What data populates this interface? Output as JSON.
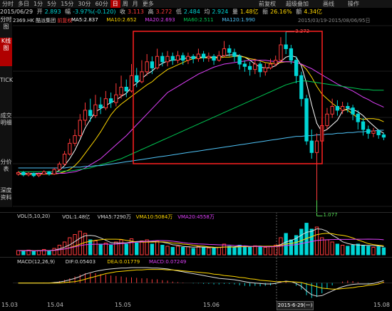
{
  "toolbar": {
    "periods": [
      "分时",
      "多日",
      "1分",
      "5分",
      "15分",
      "30分",
      "60分",
      "日",
      "周",
      "月",
      "更多"
    ],
    "active": "日",
    "right": [
      "前复权",
      "超级叠加",
      "画线",
      "操作"
    ]
  },
  "quote": {
    "date": "2015/06/29",
    "open_label": "开",
    "open": "2.893",
    "change_label": "幅",
    "change": "-3.97%(-0.120)",
    "close_label": "收",
    "close": "3.113",
    "high_label": "高",
    "high": "3.272",
    "low_label": "低",
    "low": "2.484",
    "avg_label": "均",
    "avg": "2.924",
    "volume_label": "量",
    "volume": "1.48亿",
    "amplitude_label": "振",
    "amplitude": "26.16%",
    "amount_label": "额",
    "amount": "4.34亿"
  },
  "sidebar": {
    "tabs": [
      {
        "label": "分时图"
      },
      {
        "label": "K线图",
        "active": true
      },
      {
        "label": "TICK"
      },
      {
        "label": "成交明细"
      },
      {
        "label": "分价表"
      },
      {
        "label": "深度资料"
      }
    ]
  },
  "stock": {
    "code": "2369.HK",
    "name": "酷派集团",
    "adjust": "前复权"
  },
  "ma_legend": [
    {
      "label": "MA5:2.837",
      "color": "#ffffff"
    },
    {
      "label": "MA10:2.652",
      "color": "#ffd700"
    },
    {
      "label": "MA20:2.693",
      "color": "#e040fb"
    },
    {
      "label": "MA60:2.511",
      "color": "#00c853"
    },
    {
      "label": "MA120:1.990",
      "color": "#4fc3f7"
    }
  ],
  "date_range": "2015/03/19-2015/08/06/95日",
  "max_label": "3.272",
  "min_label": "1.077",
  "vol_legend": [
    {
      "label": "VOL(5,10,20)",
      "color": "#dddddd"
    },
    {
      "label": "VOL:1.48亿",
      "color": "#dddddd"
    },
    {
      "label": "VMA5:7290万",
      "color": "#dddddd"
    },
    {
      "label": "VMA10:5084万",
      "color": "#ffd700"
    },
    {
      "label": "VMA20:4558万",
      "color": "#e040fb"
    }
  ],
  "macd_legend": [
    {
      "label": "MACD(12,26,9)",
      "color": "#dddddd"
    },
    {
      "label": "DIF:0.05403",
      "color": "#dddddd"
    },
    {
      "label": "DEA:0.01779",
      "color": "#ffd700"
    },
    {
      "label": "MACD:0.07249",
      "color": "#e040fb"
    }
  ],
  "x_labels": [
    "15.03",
    "15.04",
    "15.05",
    "15.06",
    "15.08"
  ],
  "crosshair_date": "2015-6-29(一)",
  "colors": {
    "up": "#ff3b3b",
    "down": "#00d6d6",
    "highlight": "#ff2020"
  },
  "chart_data": {
    "type": "candlestick",
    "ylim": [
      1.0,
      3.35
    ],
    "candles": [
      [
        1.42,
        1.44,
        1.46,
        1.4
      ],
      [
        1.44,
        1.41,
        1.46,
        1.39
      ],
      [
        1.41,
        1.43,
        1.45,
        1.39
      ],
      [
        1.43,
        1.4,
        1.44,
        1.38
      ],
      [
        1.4,
        1.42,
        1.44,
        1.38
      ],
      [
        1.42,
        1.45,
        1.47,
        1.41
      ],
      [
        1.45,
        1.42,
        1.46,
        1.4
      ],
      [
        1.42,
        1.48,
        1.5,
        1.41
      ],
      [
        1.48,
        1.55,
        1.58,
        1.46
      ],
      [
        1.55,
        1.68,
        1.72,
        1.53
      ],
      [
        1.68,
        1.82,
        1.88,
        1.66
      ],
      [
        1.82,
        1.92,
        2.0,
        1.78
      ],
      [
        1.92,
        2.12,
        2.2,
        1.9
      ],
      [
        2.12,
        2.25,
        2.35,
        2.05
      ],
      [
        2.25,
        2.18,
        2.4,
        2.1
      ],
      [
        2.18,
        2.32,
        2.45,
        2.15
      ],
      [
        2.32,
        2.28,
        2.42,
        2.2
      ],
      [
        2.28,
        2.4,
        2.5,
        2.25
      ],
      [
        2.4,
        2.35,
        2.48,
        2.28
      ],
      [
        2.35,
        2.45,
        2.6,
        2.3
      ],
      [
        2.45,
        2.55,
        2.7,
        2.4
      ],
      [
        2.55,
        2.5,
        2.65,
        2.42
      ],
      [
        2.5,
        2.7,
        2.85,
        2.48
      ],
      [
        2.7,
        2.62,
        2.8,
        2.55
      ],
      [
        2.62,
        2.75,
        2.9,
        2.6
      ],
      [
        2.75,
        2.88,
        2.98,
        2.7
      ],
      [
        2.88,
        2.8,
        2.95,
        2.72
      ],
      [
        2.8,
        2.95,
        3.05,
        2.78
      ],
      [
        2.95,
        2.88,
        3.0,
        2.82
      ],
      [
        2.88,
        2.95,
        3.02,
        2.82
      ],
      [
        2.95,
        2.9,
        3.0,
        2.84
      ],
      [
        2.9,
        2.96,
        3.02,
        2.86
      ],
      [
        2.96,
        2.9,
        3.0,
        2.84
      ],
      [
        2.9,
        2.95,
        3.0,
        2.85
      ],
      [
        2.95,
        2.92,
        2.98,
        2.86
      ],
      [
        2.92,
        2.98,
        3.05,
        2.88
      ],
      [
        2.98,
        2.93,
        3.02,
        2.88
      ],
      [
        2.93,
        2.95,
        3.0,
        2.88
      ],
      [
        2.95,
        2.9,
        2.98,
        2.84
      ],
      [
        2.9,
        2.96,
        3.02,
        2.88
      ],
      [
        2.96,
        3.05,
        3.15,
        2.94
      ],
      [
        3.05,
        3.0,
        3.1,
        2.95
      ],
      [
        3.0,
        2.95,
        3.05,
        2.88
      ],
      [
        2.95,
        2.85,
        2.98,
        2.78
      ],
      [
        2.85,
        2.82,
        2.9,
        2.75
      ],
      [
        2.82,
        2.78,
        2.88,
        2.7
      ],
      [
        2.78,
        2.85,
        2.92,
        2.72
      ],
      [
        2.85,
        2.75,
        2.88,
        2.68
      ],
      [
        2.75,
        2.8,
        2.86,
        2.7
      ],
      [
        2.8,
        2.85,
        2.92,
        2.78
      ],
      [
        2.85,
        2.9,
        2.96,
        2.82
      ],
      [
        2.9,
        3.1,
        3.2,
        2.88
      ],
      [
        3.1,
        3.05,
        3.27,
        2.98
      ],
      [
        3.05,
        2.9,
        3.1,
        2.85
      ],
      [
        2.9,
        2.7,
        2.95,
        2.6
      ],
      [
        2.7,
        2.4,
        2.75,
        2.3
      ],
      [
        2.4,
        1.85,
        2.45,
        1.8
      ],
      [
        1.85,
        1.7,
        2.0,
        1.62
      ],
      [
        1.7,
        1.85,
        1.95,
        1.08
      ],
      [
        1.85,
        2.05,
        2.15,
        1.8
      ],
      [
        2.05,
        2.2,
        2.28,
        2.0
      ],
      [
        2.2,
        2.3,
        2.4,
        2.15
      ],
      [
        2.3,
        2.25,
        2.38,
        2.18
      ],
      [
        2.25,
        2.3,
        2.36,
        2.2
      ],
      [
        2.3,
        2.28,
        2.35,
        2.22
      ],
      [
        2.28,
        2.2,
        2.32,
        2.12
      ],
      [
        2.2,
        2.1,
        2.25,
        2.0
      ],
      [
        2.1,
        2.0,
        2.15,
        1.92
      ],
      [
        2.0,
        1.95,
        2.05,
        1.88
      ],
      [
        1.95,
        1.98,
        2.02,
        1.9
      ],
      [
        1.98,
        1.93,
        2.0,
        1.88
      ],
      [
        1.93,
        1.9,
        1.96,
        1.86
      ]
    ],
    "series": [
      {
        "name": "MA5",
        "color": "#ffffff",
        "values": [
          1.42,
          1.42,
          1.42,
          1.42,
          1.42,
          1.43,
          1.43,
          1.43,
          1.47,
          1.53,
          1.62,
          1.73,
          1.87,
          2.02,
          2.13,
          2.23,
          2.27,
          2.31,
          2.35,
          2.38,
          2.43,
          2.47,
          2.55,
          2.6,
          2.66,
          2.72,
          2.76,
          2.82,
          2.86,
          2.89,
          2.9,
          2.91,
          2.92,
          2.93,
          2.94,
          2.94,
          2.94,
          2.94,
          2.94,
          2.94,
          2.96,
          2.97,
          2.97,
          2.96,
          2.94,
          2.9,
          2.85,
          2.81,
          2.8,
          2.8,
          2.83,
          2.88,
          2.94,
          2.96,
          2.94,
          2.83,
          2.6,
          2.32,
          2.08,
          1.97,
          2.0,
          2.06,
          2.12,
          2.24,
          2.27,
          2.26,
          2.23,
          2.18,
          2.11,
          2.05,
          1.99,
          1.95
        ]
      },
      {
        "name": "MA10",
        "color": "#ffd700",
        "values": [
          1.42,
          1.42,
          1.42,
          1.42,
          1.42,
          1.42,
          1.42,
          1.42,
          1.43,
          1.45,
          1.48,
          1.53,
          1.6,
          1.69,
          1.78,
          1.87,
          1.97,
          2.08,
          2.19,
          2.27,
          2.33,
          2.38,
          2.43,
          2.48,
          2.53,
          2.58,
          2.62,
          2.68,
          2.73,
          2.78,
          2.81,
          2.84,
          2.87,
          2.9,
          2.92,
          2.93,
          2.93,
          2.93,
          2.93,
          2.93,
          2.94,
          2.94,
          2.95,
          2.95,
          2.94,
          2.92,
          2.91,
          2.89,
          2.87,
          2.86,
          2.86,
          2.87,
          2.88,
          2.88,
          2.87,
          2.85,
          2.78,
          2.68,
          2.56,
          2.46,
          2.4,
          2.34,
          2.29,
          2.26,
          2.25,
          2.2,
          2.15,
          2.13,
          2.14,
          2.14,
          2.13,
          2.1
        ]
      },
      {
        "name": "MA20",
        "color": "#e040fb",
        "values": [
          1.43,
          1.43,
          1.43,
          1.43,
          1.43,
          1.43,
          1.43,
          1.43,
          1.43,
          1.43,
          1.44,
          1.45,
          1.47,
          1.5,
          1.54,
          1.58,
          1.62,
          1.68,
          1.74,
          1.8,
          1.86,
          1.92,
          1.99,
          2.06,
          2.13,
          2.2,
          2.27,
          2.34,
          2.41,
          2.48,
          2.52,
          2.56,
          2.6,
          2.64,
          2.68,
          2.72,
          2.75,
          2.78,
          2.81,
          2.83,
          2.85,
          2.86,
          2.87,
          2.88,
          2.89,
          2.9,
          2.9,
          2.9,
          2.9,
          2.89,
          2.88,
          2.88,
          2.88,
          2.88,
          2.87,
          2.85,
          2.82,
          2.79,
          2.75,
          2.71,
          2.67,
          2.63,
          2.59,
          2.56,
          2.53,
          2.5,
          2.46,
          2.42,
          2.39,
          2.35,
          2.32,
          2.29
        ]
      },
      {
        "name": "MA60",
        "color": "#00c853",
        "values": [
          1.45,
          1.45,
          1.45,
          1.45,
          1.45,
          1.45,
          1.45,
          1.45,
          1.45,
          1.46,
          1.46,
          1.47,
          1.48,
          1.49,
          1.5,
          1.52,
          1.54,
          1.56,
          1.58,
          1.6,
          1.62,
          1.65,
          1.68,
          1.71,
          1.74,
          1.77,
          1.8,
          1.83,
          1.86,
          1.89,
          1.92,
          1.95,
          1.98,
          2.01,
          2.04,
          2.07,
          2.1,
          2.13,
          2.16,
          2.19,
          2.22,
          2.25,
          2.28,
          2.31,
          2.34,
          2.37,
          2.4,
          2.43,
          2.46,
          2.49,
          2.52,
          2.55,
          2.58,
          2.6,
          2.62,
          2.63,
          2.63,
          2.62,
          2.61,
          2.6,
          2.59,
          2.58,
          2.57,
          2.56,
          2.55,
          2.54,
          2.53,
          2.52,
          2.52,
          2.51,
          2.51,
          2.51
        ]
      },
      {
        "name": "MA120",
        "color": "#4fc3f7",
        "values": [
          1.5,
          1.5,
          1.5,
          1.5,
          1.5,
          1.5,
          1.5,
          1.5,
          1.5,
          1.5,
          1.51,
          1.51,
          1.51,
          1.52,
          1.52,
          1.53,
          1.53,
          1.54,
          1.55,
          1.56,
          1.57,
          1.58,
          1.59,
          1.6,
          1.61,
          1.62,
          1.63,
          1.64,
          1.65,
          1.66,
          1.67,
          1.68,
          1.69,
          1.7,
          1.71,
          1.72,
          1.73,
          1.74,
          1.75,
          1.76,
          1.77,
          1.78,
          1.79,
          1.8,
          1.81,
          1.82,
          1.83,
          1.84,
          1.85,
          1.86,
          1.87,
          1.88,
          1.89,
          1.9,
          1.91,
          1.91,
          1.92,
          1.92,
          1.93,
          1.93,
          1.94,
          1.94,
          1.95,
          1.95,
          1.96,
          1.96,
          1.97,
          1.97,
          1.98,
          1.98,
          1.99,
          1.99
        ]
      }
    ],
    "volume": [
      0.2,
      0.18,
      0.22,
      0.15,
      0.2,
      0.25,
      0.18,
      0.3,
      0.45,
      0.6,
      0.8,
      0.95,
      1.1,
      1.0,
      0.7,
      0.65,
      0.5,
      0.55,
      0.45,
      0.6,
      0.7,
      0.5,
      0.75,
      0.55,
      0.65,
      0.7,
      0.5,
      0.65,
      0.45,
      0.4,
      0.35,
      0.4,
      0.35,
      0.38,
      0.3,
      0.4,
      0.35,
      0.32,
      0.3,
      0.35,
      0.5,
      0.4,
      0.35,
      0.45,
      0.4,
      0.38,
      0.42,
      0.4,
      0.35,
      0.4,
      0.45,
      0.8,
      1.0,
      0.7,
      0.9,
      1.2,
      1.48,
      1.2,
      1.3,
      0.8,
      0.7,
      0.6,
      0.5,
      0.45,
      0.4,
      0.45,
      0.5,
      0.45,
      0.4,
      0.35,
      0.38,
      0.33
    ],
    "volume_ylim": [
      0,
      1.6
    ],
    "macd": [
      0.0,
      0.0,
      0.0,
      0.0,
      0.0,
      0.01,
      0.01,
      0.02,
      0.04,
      0.07,
      0.1,
      0.14,
      0.18,
      0.21,
      0.21,
      0.21,
      0.19,
      0.18,
      0.16,
      0.15,
      0.14,
      0.12,
      0.12,
      0.11,
      0.1,
      0.1,
      0.08,
      0.08,
      0.06,
      0.05,
      0.03,
      0.02,
      0.01,
      0.0,
      -0.01,
      -0.01,
      -0.02,
      -0.02,
      -0.03,
      -0.03,
      -0.02,
      -0.02,
      -0.03,
      -0.05,
      -0.06,
      -0.07,
      -0.06,
      -0.07,
      -0.06,
      -0.05,
      -0.03,
      0.02,
      0.03,
      0.0,
      -0.06,
      -0.14,
      -0.26,
      -0.32,
      -0.3,
      -0.22,
      -0.12,
      -0.05,
      0.0,
      0.03,
      0.05,
      0.04,
      0.02,
      0.0,
      -0.01,
      0.0,
      0.01,
      0.02
    ],
    "dif": [
      0.0,
      0.0,
      0.0,
      0.0,
      0.0,
      0.0,
      0.0,
      0.01,
      0.02,
      0.04,
      0.07,
      0.1,
      0.14,
      0.19,
      0.22,
      0.25,
      0.27,
      0.29,
      0.3,
      0.31,
      0.32,
      0.32,
      0.33,
      0.33,
      0.33,
      0.33,
      0.32,
      0.32,
      0.31,
      0.3,
      0.28,
      0.26,
      0.24,
      0.22,
      0.2,
      0.18,
      0.16,
      0.14,
      0.12,
      0.1,
      0.09,
      0.08,
      0.07,
      0.05,
      0.03,
      0.01,
      0.0,
      -0.01,
      -0.02,
      -0.02,
      -0.01,
      0.02,
      0.04,
      0.03,
      -0.01,
      -0.07,
      -0.17,
      -0.25,
      -0.28,
      -0.27,
      -0.22,
      -0.17,
      -0.12,
      -0.08,
      -0.05,
      -0.03,
      -0.02,
      -0.02,
      -0.02,
      -0.01,
      0.02,
      0.05
    ],
    "dea": [
      0.0,
      0.0,
      0.0,
      0.0,
      0.0,
      0.0,
      0.0,
      0.0,
      0.0,
      0.01,
      0.02,
      0.03,
      0.05,
      0.08,
      0.11,
      0.14,
      0.17,
      0.2,
      0.22,
      0.24,
      0.25,
      0.26,
      0.27,
      0.28,
      0.28,
      0.29,
      0.29,
      0.29,
      0.29,
      0.28,
      0.28,
      0.27,
      0.26,
      0.25,
      0.24,
      0.23,
      0.22,
      0.21,
      0.19,
      0.18,
      0.16,
      0.15,
      0.14,
      0.12,
      0.11,
      0.09,
      0.08,
      0.06,
      0.05,
      0.04,
      0.03,
      0.03,
      0.03,
      0.03,
      0.02,
      0.01,
      -0.02,
      -0.05,
      -0.08,
      -0.11,
      -0.12,
      -0.13,
      -0.13,
      -0.12,
      -0.11,
      -0.1,
      -0.08,
      -0.07,
      -0.05,
      -0.04,
      -0.02,
      0.02
    ],
    "macd_ylim": [
      -0.34,
      0.36
    ]
  }
}
